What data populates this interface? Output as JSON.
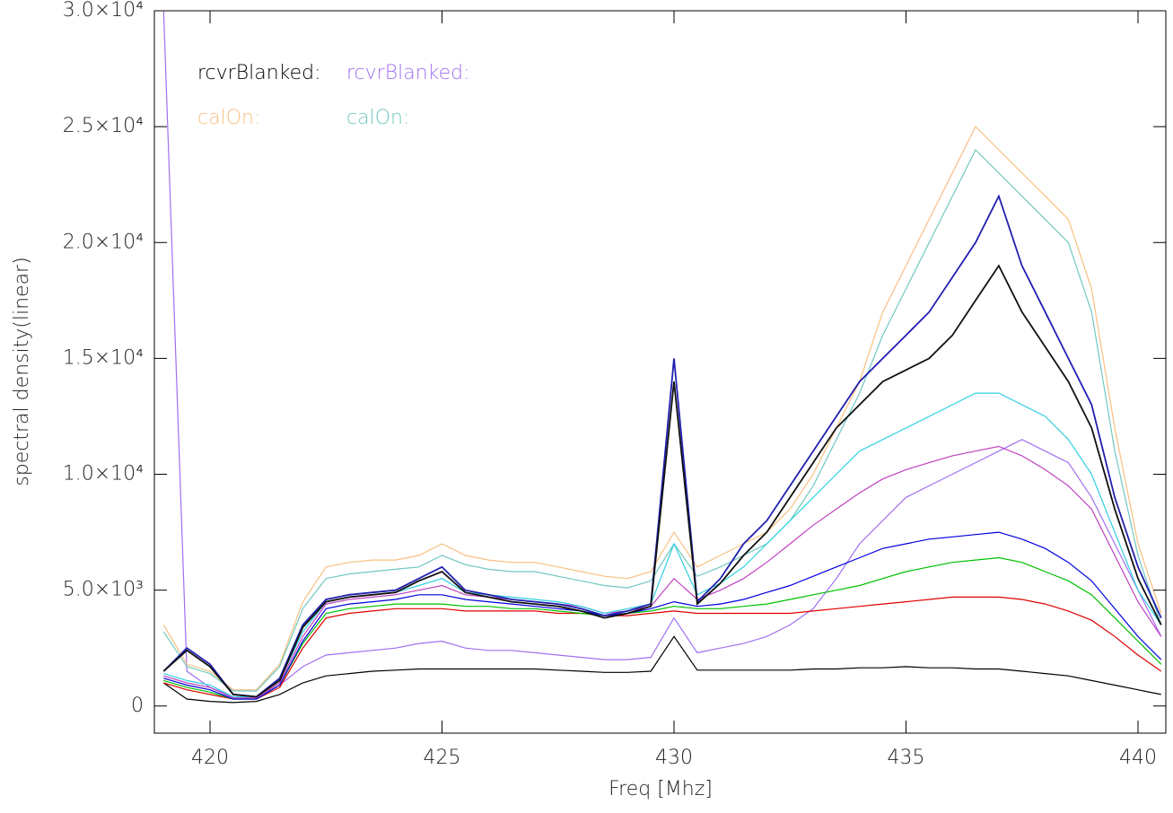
{
  "chart_data": {
    "type": "line",
    "xlabel": "Freq [Mhz]",
    "ylabel": "spectral density(linear)",
    "xlim": [
      418.8,
      440.6
    ],
    "ylim": [
      -1170,
      30000
    ],
    "xticks": [
      420,
      425,
      430,
      435,
      440
    ],
    "yticks": [
      0,
      {
        "value": 5000,
        "label": "5.0×10³"
      },
      {
        "value": 10000,
        "label": "1.0×10⁴"
      },
      {
        "value": 15000,
        "label": "1.5×10⁴"
      },
      {
        "value": 20000,
        "label": "2.0×10⁴"
      },
      {
        "value": 25000,
        "label": "2.5×10⁴"
      },
      {
        "value": 30000,
        "label": "3.0×10⁴"
      }
    ],
    "x": [
      419,
      419.5,
      420,
      420.5,
      421,
      421.5,
      422,
      422.5,
      423,
      423.5,
      424,
      424.5,
      425,
      425.5,
      426,
      426.5,
      427,
      427.5,
      428,
      428.5,
      429,
      429.5,
      430,
      430.5,
      431,
      431.5,
      432,
      432.5,
      433,
      433.5,
      434,
      434.5,
      435,
      435.5,
      436,
      436.5,
      437,
      437.5,
      438,
      438.5,
      439,
      439.5,
      440,
      440.5
    ],
    "series": [
      {
        "name": "rcvrBlanked:",
        "color": "#000000",
        "values": [
          1000,
          300,
          200,
          150,
          200,
          500,
          1000,
          1300,
          1400,
          1500,
          1550,
          1600,
          1600,
          1600,
          1600,
          1600,
          1600,
          1550,
          1500,
          1450,
          1450,
          1500,
          3000,
          1550,
          1550,
          1550,
          1550,
          1550,
          1600,
          1600,
          1650,
          1650,
          1700,
          1650,
          1650,
          1600,
          1600,
          1500,
          1400,
          1300,
          1100,
          900,
          700,
          500
        ]
      },
      {
        "name": "rcvrBlanked:",
        "color": "#a070f0",
        "values": [
          30000,
          1500,
          800,
          400,
          400,
          900,
          1700,
          2200,
          2300,
          2400,
          2500,
          2700,
          2800,
          2500,
          2400,
          2400,
          2300,
          2200,
          2100,
          2000,
          2000,
          2100,
          3800,
          2300,
          2500,
          2700,
          3000,
          3500,
          4200,
          5500,
          7000,
          8000,
          9000,
          9500,
          10000,
          10500,
          11000,
          11500,
          11000,
          10500,
          9000,
          7000,
          5000,
          3000
        ]
      },
      {
        "name": "calOn:",
        "color": "#f8c080",
        "values": [
          3500,
          1800,
          1500,
          700,
          700,
          1800,
          4500,
          6000,
          6200,
          6300,
          6300,
          6500,
          7000,
          6500,
          6300,
          6200,
          6200,
          6000,
          5800,
          5600,
          5500,
          5800,
          7500,
          6000,
          6500,
          7000,
          7500,
          8500,
          10000,
          12000,
          14000,
          17000,
          19000,
          21000,
          23000,
          25000,
          24000,
          23000,
          22000,
          21000,
          18000,
          12000,
          7000,
          4000
        ]
      },
      {
        "name": "calOn:",
        "color": "#70c8c0",
        "values": [
          3200,
          1700,
          1400,
          650,
          650,
          1700,
          4200,
          5500,
          5700,
          5800,
          5900,
          6000,
          6500,
          6100,
          5900,
          5800,
          5800,
          5600,
          5400,
          5200,
          5100,
          5400,
          7000,
          5600,
          6000,
          6500,
          7000,
          8000,
          9500,
          11500,
          13500,
          16000,
          18000,
          20000,
          22000,
          24000,
          23000,
          22000,
          21000,
          20000,
          17000,
          11000,
          6500,
          3500
        ]
      },
      {
        "color": "#e00000",
        "values": [
          1000,
          700,
          500,
          300,
          300,
          800,
          2500,
          3800,
          4000,
          4100,
          4200,
          4200,
          4200,
          4100,
          4100,
          4100,
          4100,
          4000,
          4000,
          3900,
          3900,
          4000,
          4100,
          4000,
          4000,
          4000,
          4000,
          4000,
          4100,
          4200,
          4300,
          4400,
          4500,
          4600,
          4700,
          4700,
          4700,
          4600,
          4400,
          4100,
          3700,
          3000,
          2200,
          1500
        ]
      },
      {
        "color": "#00c000",
        "values": [
          1100,
          800,
          600,
          300,
          300,
          900,
          2700,
          4000,
          4200,
          4300,
          4400,
          4400,
          4400,
          4300,
          4300,
          4200,
          4200,
          4100,
          4000,
          3900,
          4000,
          4100,
          4300,
          4200,
          4200,
          4300,
          4400,
          4600,
          4800,
          5000,
          5200,
          5500,
          5800,
          6000,
          6200,
          6300,
          6400,
          6200,
          5800,
          5400,
          4800,
          3800,
          2800,
          1800
        ]
      },
      {
        "color": "#0000e0",
        "values": [
          1200,
          900,
          700,
          300,
          300,
          900,
          2800,
          4200,
          4400,
          4500,
          4600,
          4800,
          4800,
          4600,
          4500,
          4400,
          4300,
          4200,
          4100,
          3900,
          4000,
          4200,
          4500,
          4300,
          4400,
          4600,
          4900,
          5200,
          5600,
          6000,
          6400,
          6800,
          7000,
          7200,
          7300,
          7400,
          7500,
          7200,
          6800,
          6200,
          5400,
          4200,
          3000,
          2000
        ]
      },
      {
        "color": "#c040c0",
        "values": [
          1300,
          1000,
          800,
          350,
          350,
          1000,
          3000,
          4400,
          4600,
          4700,
          4800,
          5000,
          5200,
          4800,
          4700,
          4600,
          4500,
          4400,
          4300,
          4000,
          4100,
          4300,
          5500,
          4600,
          5000,
          5500,
          6200,
          7000,
          7800,
          8500,
          9200,
          9800,
          10200,
          10500,
          10800,
          11000,
          11200,
          10800,
          10200,
          9500,
          8500,
          6500,
          4500,
          3000
        ]
      },
      {
        "color": "#30d0e0",
        "values": [
          1400,
          1100,
          900,
          400,
          400,
          1100,
          3200,
          4500,
          4700,
          4800,
          4900,
          5200,
          5500,
          4900,
          4800,
          4700,
          4600,
          4500,
          4300,
          4000,
          4200,
          4400,
          7000,
          4800,
          5300,
          6000,
          7000,
          8000,
          9000,
          10000,
          11000,
          11500,
          12000,
          12500,
          13000,
          13500,
          13500,
          13000,
          12500,
          11500,
          10000,
          7500,
          5000,
          3500
        ]
      },
      {
        "color": "#2020b0",
        "values": [
          1500,
          2500,
          1800,
          500,
          400,
          1200,
          3500,
          4600,
          4800,
          4900,
          5000,
          5500,
          6000,
          5000,
          4800,
          4600,
          4500,
          4400,
          4200,
          3900,
          4100,
          4400,
          15000,
          4500,
          5500,
          7000,
          8000,
          9500,
          11000,
          12500,
          14000,
          15000,
          16000,
          17000,
          18500,
          20000,
          22000,
          19000,
          17000,
          15000,
          13000,
          9000,
          6000,
          3800
        ]
      },
      {
        "color": "#101010",
        "values": [
          1500,
          2400,
          1700,
          500,
          400,
          1100,
          3400,
          4500,
          4700,
          4800,
          4900,
          5400,
          5800,
          4900,
          4700,
          4500,
          4400,
          4300,
          4100,
          3800,
          4000,
          4300,
          14000,
          4400,
          5300,
          6500,
          7500,
          9000,
          10500,
          12000,
          13000,
          14000,
          14500,
          15000,
          16000,
          17500,
          19000,
          17000,
          15500,
          14000,
          12000,
          8500,
          5500,
          3500
        ]
      }
    ]
  }
}
